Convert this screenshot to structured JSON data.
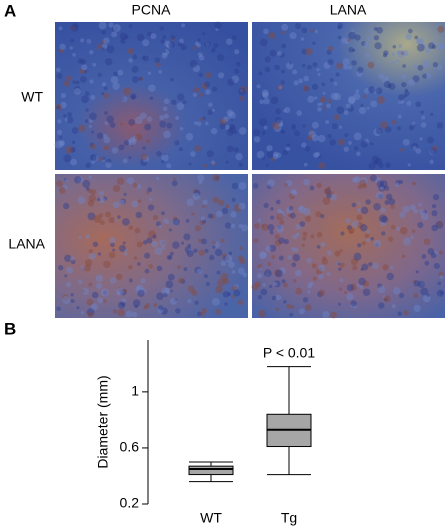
{
  "panel_a": {
    "label": "A",
    "columns": [
      "PCNA",
      "LANA"
    ],
    "rows": [
      "WT",
      "LANA"
    ]
  },
  "panel_b": {
    "label": "B"
  },
  "chart_data": {
    "type": "box",
    "ylabel": "Diameter (mm)",
    "categories": [
      "WT",
      "Tg"
    ],
    "boxes": [
      {
        "whisker_low": 0.36,
        "q1": 0.41,
        "median": 0.45,
        "q3": 0.47,
        "whisker_high": 0.5
      },
      {
        "whisker_low": 0.41,
        "q1": 0.61,
        "median": 0.73,
        "q3": 0.84,
        "whisker_high": 1.18
      }
    ],
    "color": "#a6a6a6",
    "annotation": "P < 0.01",
    "ylim": [
      0.2,
      1.37
    ],
    "yticks": [
      0.2,
      0.6,
      1.0
    ]
  }
}
